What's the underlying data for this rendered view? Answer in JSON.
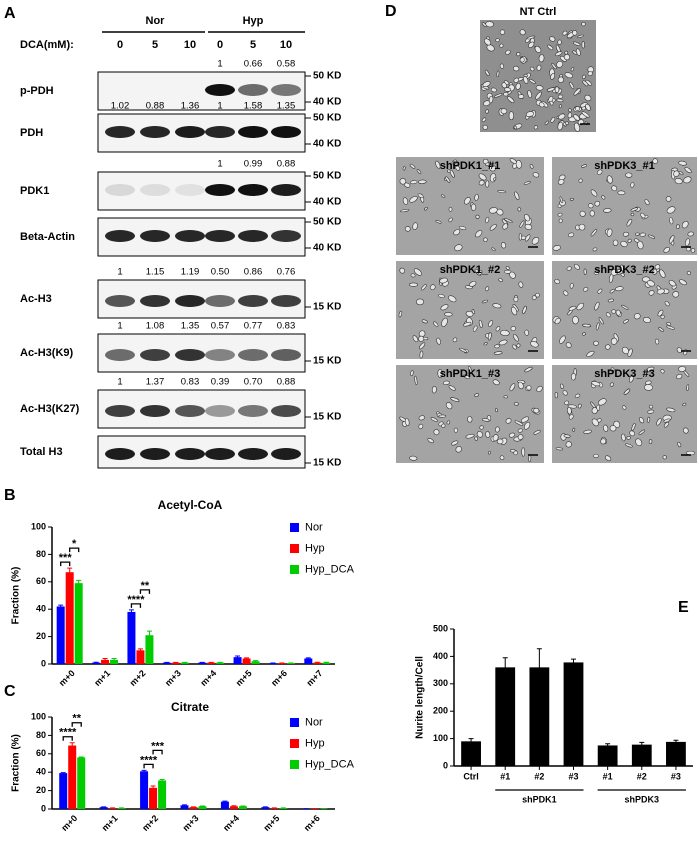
{
  "panels": {
    "a": "A",
    "b": "B",
    "c": "C",
    "d": "D",
    "e": "E"
  },
  "panel_a": {
    "groups": [
      {
        "label": "Nor"
      },
      {
        "label": "Hyp"
      }
    ],
    "dose_label": "DCA(mM):",
    "doses": [
      "0",
      "5",
      "10",
      "0",
      "5",
      "10"
    ],
    "rows": [
      {
        "label": "p-PDH",
        "quantification": [
          null,
          null,
          null,
          "1",
          "0.66",
          "0.58"
        ],
        "markers": [
          "50 KD",
          "40 KD"
        ]
      },
      {
        "label": "PDH",
        "quantification": [
          "1.02",
          "0.88",
          "1.36",
          "1",
          "1.58",
          "1.35"
        ],
        "markers": [
          "50 KD",
          "40 KD"
        ]
      },
      {
        "label": "PDK1",
        "quantification": [
          null,
          null,
          null,
          "1",
          "0.99",
          "0.88"
        ],
        "markers": [
          "50 KD",
          "40 KD"
        ]
      },
      {
        "label": "Beta-Actin",
        "markers": [
          "50 KD",
          "40 KD"
        ]
      },
      {
        "label": "Ac-H3",
        "quantification": [
          "1",
          "1.15",
          "1.19",
          "0.50",
          "0.86",
          "0.76"
        ],
        "markers": [
          "15 KD"
        ]
      },
      {
        "label": "Ac-H3(K9)",
        "quantification": [
          "1",
          "1.08",
          "1.35",
          "0.57",
          "0.77",
          "0.83"
        ],
        "markers": [
          "15 KD"
        ]
      },
      {
        "label": "Ac-H3(K27)",
        "quantification": [
          "1",
          "1.37",
          "0.83",
          "0.39",
          "0.70",
          "0.88"
        ],
        "markers": [
          "15 KD"
        ]
      },
      {
        "label": "Total H3",
        "markers": [
          "15 KD"
        ]
      }
    ]
  },
  "panel_d": {
    "control": "NT Ctrl",
    "images": [
      "shPDK1_#1",
      "shPDK3_#1",
      "shPDK1_#2",
      "shPDK3_#2",
      "shPDK1_#3",
      "shPDK3_#3"
    ]
  },
  "chart_data": [
    {
      "type": "bar",
      "title": "Acetyl-CoA",
      "ylabel": "Fraction (%)",
      "categories": [
        "m+0",
        "m+1",
        "m+2",
        "m+3",
        "m+4",
        "m+5",
        "m+6",
        "m+7"
      ],
      "series": [
        {
          "name": "Nor",
          "color": "#0000ff",
          "values": [
            42,
            1,
            38,
            1,
            1,
            5,
            0.5,
            4
          ],
          "errors": [
            1,
            0.3,
            1.5,
            0.2,
            0.2,
            0.8,
            0.2,
            0.5
          ]
        },
        {
          "name": "Hyp",
          "color": "#ff0000",
          "values": [
            67,
            3,
            10,
            1,
            1,
            4,
            0.5,
            1
          ],
          "errors": [
            3,
            1,
            1,
            0.2,
            0.2,
            0.5,
            0.2,
            0.3
          ]
        },
        {
          "name": "Hyp_DCA",
          "color": "#00cc00",
          "values": [
            59,
            3,
            21,
            1,
            1,
            2,
            0.5,
            1
          ],
          "errors": [
            2,
            1,
            3,
            0.2,
            0.2,
            0.5,
            0.2,
            0.3
          ]
        }
      ],
      "annotations": [
        {
          "text": "***",
          "category": "m+0",
          "between": [
            "Nor",
            "Hyp"
          ]
        },
        {
          "text": "*",
          "category": "m+0",
          "between": [
            "Hyp",
            "Hyp_DCA"
          ]
        },
        {
          "text": "****",
          "category": "m+2",
          "between": [
            "Nor",
            "Hyp"
          ]
        },
        {
          "text": "**",
          "category": "m+2",
          "between": [
            "Hyp",
            "Hyp_DCA"
          ]
        }
      ],
      "ylim": [
        0,
        100
      ],
      "yticks": [
        0,
        20,
        40,
        60,
        80,
        100
      ]
    },
    {
      "type": "bar",
      "title": "Citrate",
      "ylabel": "Fraction (%)",
      "categories": [
        "m+0",
        "m+1",
        "m+2",
        "m+3",
        "m+4",
        "m+5",
        "m+6"
      ],
      "series": [
        {
          "name": "Nor",
          "color": "#0000ff",
          "values": [
            39,
            2,
            41,
            4,
            8,
            2,
            0.3
          ],
          "errors": [
            0.5,
            0.3,
            1,
            0.5,
            0.5,
            0.3,
            0.1
          ]
        },
        {
          "name": "Hyp",
          "color": "#ff0000",
          "values": [
            69,
            1,
            23,
            2,
            3,
            1,
            0.3
          ],
          "errors": [
            3,
            0.2,
            2,
            0.3,
            0.5,
            0.2,
            0.1
          ]
        },
        {
          "name": "Hyp_DCA",
          "color": "#00cc00",
          "values": [
            56,
            1,
            31,
            3,
            3,
            1,
            0.3
          ],
          "errors": [
            0.5,
            0.2,
            1,
            0.3,
            0.3,
            0.2,
            0.1
          ]
        }
      ],
      "annotations": [
        {
          "text": "****",
          "category": "m+0",
          "between": [
            "Nor",
            "Hyp"
          ]
        },
        {
          "text": "**",
          "category": "m+0",
          "between": [
            "Hyp",
            "Hyp_DCA"
          ]
        },
        {
          "text": "****",
          "category": "m+2",
          "between": [
            "Nor",
            "Hyp"
          ]
        },
        {
          "text": "***",
          "category": "m+2",
          "between": [
            "Hyp",
            "Hyp_DCA"
          ]
        }
      ],
      "ylim": [
        0,
        100
      ],
      "yticks": [
        0,
        20,
        40,
        60,
        80,
        100
      ]
    },
    {
      "type": "bar",
      "ylabel": "Nurite length/Cell",
      "categories": [
        "Ctrl",
        "#1",
        "#2",
        "#3",
        "#1",
        "#2",
        "#3"
      ],
      "values": [
        90,
        360,
        360,
        378,
        75,
        78,
        88
      ],
      "errors": [
        10,
        35,
        68,
        12,
        6,
        8,
        6
      ],
      "color": "#000000",
      "groups": [
        {
          "label": "shPDK1",
          "from": 1,
          "to": 3
        },
        {
          "label": "shPDK3",
          "from": 4,
          "to": 6
        }
      ],
      "ylim": [
        0,
        500
      ],
      "yticks": [
        0,
        100,
        200,
        300,
        400,
        500
      ]
    }
  ]
}
